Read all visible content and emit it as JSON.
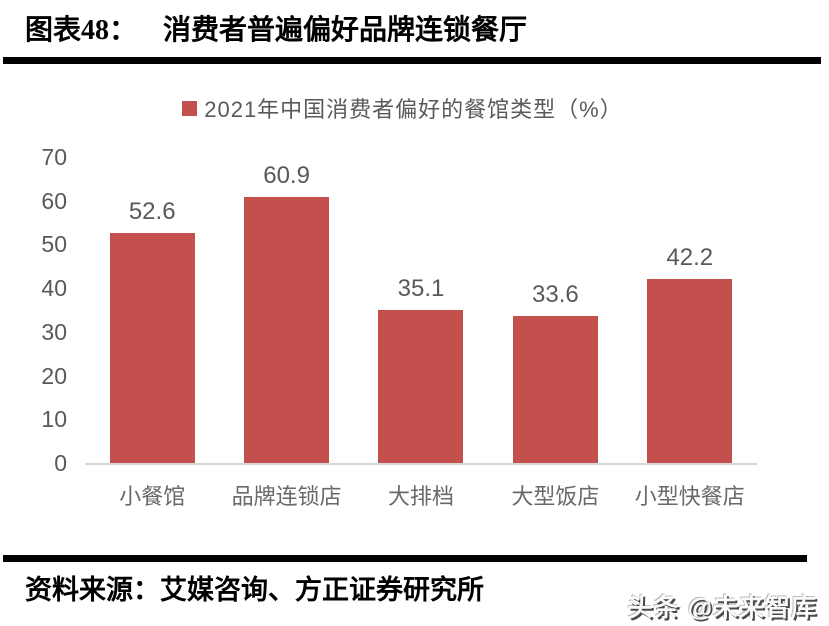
{
  "header": {
    "label": "图表48：",
    "title": "消费者普遍偏好品牌连锁餐厅"
  },
  "legend": {
    "marker_color": "#C4504D",
    "label": "2021年中国消费者偏好的餐馆类型（%）"
  },
  "chart_data": {
    "type": "bar",
    "title": "2021年中国消费者偏好的餐馆类型（%）",
    "categories": [
      "小餐馆",
      "品牌连锁店",
      "大排档",
      "大型饭店",
      "小型快餐店"
    ],
    "values": [
      52.6,
      60.9,
      35.1,
      33.6,
      42.2
    ],
    "xlabel": "",
    "ylabel": "",
    "ylim": [
      0,
      70
    ],
    "yticks": [
      0,
      10,
      20,
      30,
      40,
      50,
      60,
      70
    ],
    "bar_color": "#C4504D",
    "label_color": "#595959",
    "grid": false,
    "legend_position": "top"
  },
  "footer": {
    "source": "资料来源：艾媒咨询、方正证券研究所",
    "watermark": "头条 @未来智库"
  }
}
